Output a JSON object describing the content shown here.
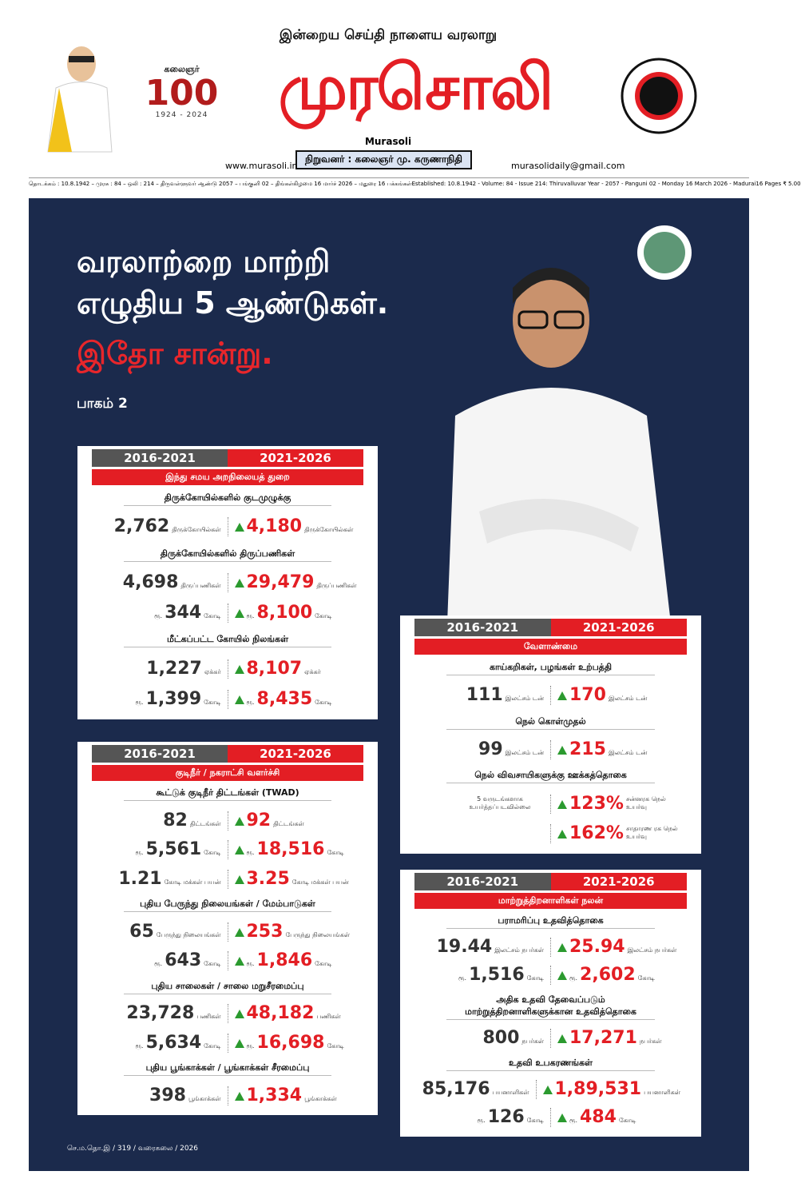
{
  "header": {
    "tagline": "இன்றைய செய்தி நாளைய வரலாறு",
    "masthead": "முரசொலி",
    "subtitle": "Murasoli",
    "founder": "நிறுவனர் : கலைஞர் மு. கருணாநிதி",
    "website": "www.murasoli.in",
    "email": "murasolidaily@gmail.com",
    "centenary": {
      "name": "கலைஞர்",
      "number": "100",
      "years": "1924 - 2024"
    },
    "dateline_ta": "தொடக்கம் : 10.8.1942 – முரசு : 84 – ஒலி : 214 – திருவள்ளுவர் ஆண்டு 2057 – பங்குனி 02 – திங்கள்கிழமை 16 மார்ச் 2026 – மதுரை 16 பக்கங்கள்",
    "dateline_en": "Established: 10.8.1942 - Volume: 84 - Issue 214: Thiruvalluvar Year - 2057 - Panguni 02 - Monday 16 March 2026 - Madurai",
    "price": "16 Pages ₹ 5.00"
  },
  "hero": {
    "line1": "வரலாற்றை மாற்றி",
    "line2": "எழுதிய 5 ஆண்டுகள்.",
    "line3": "இதோ சான்று.",
    "part": "பாகம் 2"
  },
  "footer": "செ.ம.தொ.இ / 319 / வரைகலை / 2026",
  "panels": [
    {
      "period_a": "2016-2021",
      "period_b": "2021-2026",
      "dept": "இந்து சமய அறநிலையத் துறை",
      "sections": [
        {
          "heading": "திருக்கோயில்களில் குடமுழுக்கு",
          "items": [
            {
              "left": {
                "value": "2,762",
                "unit": "திருக்கோயில்கள்"
              },
              "right": {
                "value": "4,180",
                "unit": "திருக்கோயில்கள்"
              }
            }
          ]
        },
        {
          "heading": "திருக்கோயில்களில் திருப்பணிகள்",
          "items": [
            {
              "left": {
                "value": "4,698",
                "unit": "திருப்பணிகள்"
              },
              "right": {
                "value": "29,479",
                "unit": "திருப்பணிகள்"
              }
            },
            {
              "left": {
                "prefix": "ரூ.",
                "value": "344",
                "unit": "கோடி"
              },
              "right": {
                "prefix": "ரூ.",
                "value": "8,100",
                "unit": "கோடி"
              }
            }
          ]
        },
        {
          "heading": "மீட்கப்பட்ட கோயில் நிலங்கள்",
          "items": [
            {
              "left": {
                "value": "1,227",
                "unit": "ஏக்கர்"
              },
              "right": {
                "value": "8,107",
                "unit": "ஏக்கர்"
              }
            },
            {
              "left": {
                "prefix": "ரூ.",
                "value": "1,399",
                "unit": "கோடி"
              },
              "right": {
                "prefix": "ரூ.",
                "value": "8,435",
                "unit": "கோடி"
              }
            }
          ]
        }
      ]
    },
    {
      "period_a": "2016-2021",
      "period_b": "2021-2026",
      "dept": "குடிநீர் / நகராட்சி வளர்ச்சி",
      "sections": [
        {
          "heading": "கூட்டுக் குடிநீர் திட்டங்கள் (TWAD)",
          "items": [
            {
              "left": {
                "value": "82",
                "unit": "திட்டங்கள்"
              },
              "right": {
                "value": "92",
                "unit": "திட்டங்கள்"
              }
            },
            {
              "left": {
                "prefix": "ரூ.",
                "value": "5,561",
                "unit": "கோடி"
              },
              "right": {
                "prefix": "ரூ.",
                "value": "18,516",
                "unit": "கோடி"
              }
            },
            {
              "left": {
                "value": "1.21",
                "unit": "கோடி மக்கள் பயன்"
              },
              "right": {
                "value": "3.25",
                "unit": "கோடி மக்கள் பயன்"
              }
            }
          ]
        },
        {
          "heading": "புதிய பேருந்து நிலையங்கள் / மேம்பாடுகள்",
          "items": [
            {
              "left": {
                "value": "65",
                "unit": "பேருந்து நிலையங்கள்"
              },
              "right": {
                "value": "253",
                "unit": "பேருந்து நிலையங்கள்"
              }
            },
            {
              "left": {
                "prefix": "ரூ.",
                "value": "643",
                "unit": "கோடி"
              },
              "right": {
                "prefix": "ரூ.",
                "value": "1,846",
                "unit": "கோடி"
              }
            }
          ]
        },
        {
          "heading": "புதிய சாலைகள் / சாலை மறுசீரமைப்பு",
          "items": [
            {
              "left": {
                "value": "23,728",
                "unit": "பணிகள்"
              },
              "right": {
                "value": "48,182",
                "unit": "பணிகள்"
              }
            },
            {
              "left": {
                "prefix": "ரூ.",
                "value": "5,634",
                "unit": "கோடி"
              },
              "right": {
                "prefix": "ரூ.",
                "value": "16,698",
                "unit": "கோடி"
              }
            }
          ]
        },
        {
          "heading": "புதிய பூங்காக்கள் / பூங்காக்கள் சீரமைப்பு",
          "items": [
            {
              "left": {
                "value": "398",
                "unit": "பூங்காக்கள்"
              },
              "right": {
                "value": "1,334",
                "unit": "பூங்காக்கள்"
              }
            }
          ]
        }
      ]
    },
    {
      "period_a": "2016-2021",
      "period_b": "2021-2026",
      "dept": "வேளாண்மை",
      "sections": [
        {
          "heading": "காய்கறிகள், பழங்கள் உற்பத்தி",
          "items": [
            {
              "left": {
                "value": "111",
                "unit": "இலட்சம் டன்"
              },
              "right": {
                "value": "170",
                "unit": "இலட்சம் டன்"
              }
            }
          ]
        },
        {
          "heading": "நெல் கொள்முதல்",
          "items": [
            {
              "left": {
                "value": "99",
                "unit": "இலட்சம் டன்"
              },
              "right": {
                "value": "215",
                "unit": "இலட்சம் டன்"
              }
            }
          ]
        },
        {
          "heading": "நெல் விவசாயிகளுக்கு ஊக்கத்தொகை",
          "items": [
            {
              "left": {
                "unit": "5 வருடங்களாக உயர்த்தப்படவில்லை"
              },
              "right": {
                "value": "123%",
                "unit": "சன்னரக நெல் உயர்வு"
              }
            },
            {
              "right": {
                "value": "162%",
                "unit": "சாதாரண ரக நெல் உயர்வு"
              }
            }
          ]
        }
      ]
    },
    {
      "period_a": "2016-2021",
      "period_b": "2021-2026",
      "dept": "மாற்றுத்திறனாளிகள் நலன்",
      "sections": [
        {
          "heading": "பராமரிப்பு உதவித்தொகை",
          "items": [
            {
              "left": {
                "value": "19.44",
                "unit": "இலட்சம் நபர்கள்"
              },
              "right": {
                "value": "25.94",
                "unit": "இலட்சம் நபர்கள்"
              }
            },
            {
              "left": {
                "prefix": "ரூ.",
                "value": "1,516",
                "unit": "கோடி"
              },
              "right": {
                "prefix": "ரூ.",
                "value": "2,602",
                "unit": "கோடி"
              }
            }
          ]
        },
        {
          "heading": "அதிக உதவி தேவைப்படும் மாற்றுத்திறனாளிகளுக்கான உதவித்தொகை",
          "items": [
            {
              "left": {
                "value": "800",
                "unit": "நபர்கள்"
              },
              "right": {
                "value": "17,271",
                "unit": "நபர்கள்"
              }
            }
          ]
        },
        {
          "heading": "உதவி உபகரணங்கள்",
          "items": [
            {
              "left": {
                "value": "85,176",
                "unit": "பயனாளிகள்"
              },
              "right": {
                "value": "1,89,531",
                "unit": "பயனாளிகள்"
              }
            },
            {
              "left": {
                "prefix": "ரூ.",
                "value": "126",
                "unit": "கோடி"
              },
              "right": {
                "prefix": "ரூ.",
                "value": "484",
                "unit": "கோடி"
              }
            }
          ]
        }
      ]
    }
  ]
}
